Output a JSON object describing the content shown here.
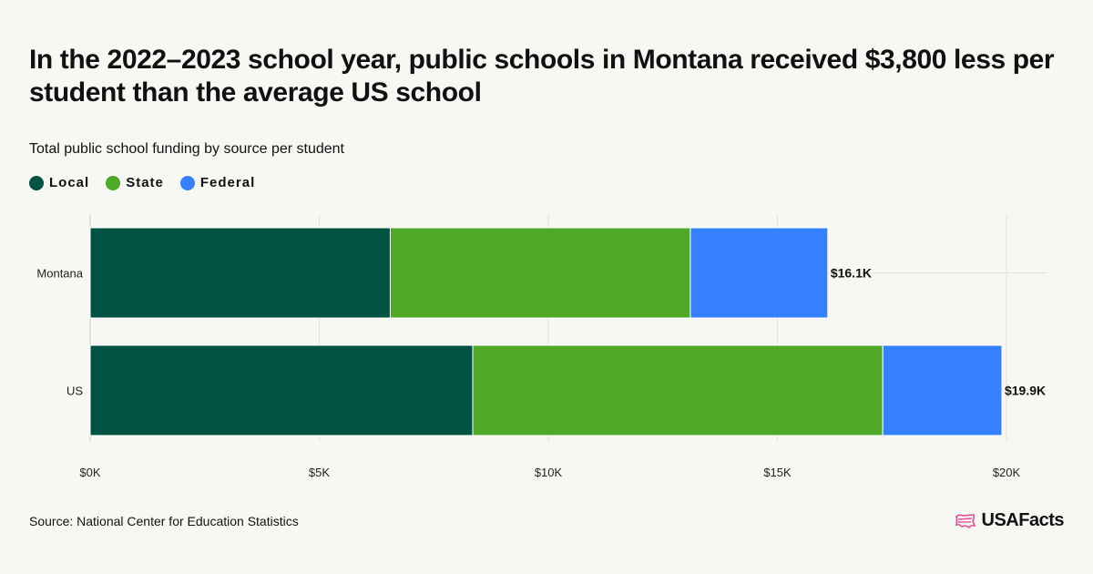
{
  "title": "In the 2022–2023 school year, public schools in Montana received $3,800 less per student than the average US school",
  "subtitle": "Total public school funding by source per student",
  "source": "Source: National Center for Education Statistics",
  "brand": {
    "name": "USAFacts",
    "logo_icon": "us-map-flag-icon",
    "logo_color": "#e8509b"
  },
  "chart_data": {
    "type": "bar",
    "orientation": "horizontal",
    "stacked": true,
    "categories": [
      "Montana",
      "US"
    ],
    "series": [
      {
        "name": "Local",
        "color": "#005343",
        "values": [
          6550,
          8350
        ]
      },
      {
        "name": "State",
        "color": "#4fa827",
        "values": [
          6550,
          8950
        ]
      },
      {
        "name": "Federal",
        "color": "#3580ff",
        "values": [
          3000,
          2600
        ]
      }
    ],
    "totals": [
      "$16.1K",
      "$19.9K"
    ],
    "xlim": [
      0,
      20000
    ],
    "xticks": [
      0,
      5000,
      10000,
      15000,
      20000
    ],
    "xtick_labels": [
      "$0K",
      "$5K",
      "$10K",
      "$15K",
      "$20K"
    ],
    "grid": true,
    "legend_position": "top-left"
  }
}
